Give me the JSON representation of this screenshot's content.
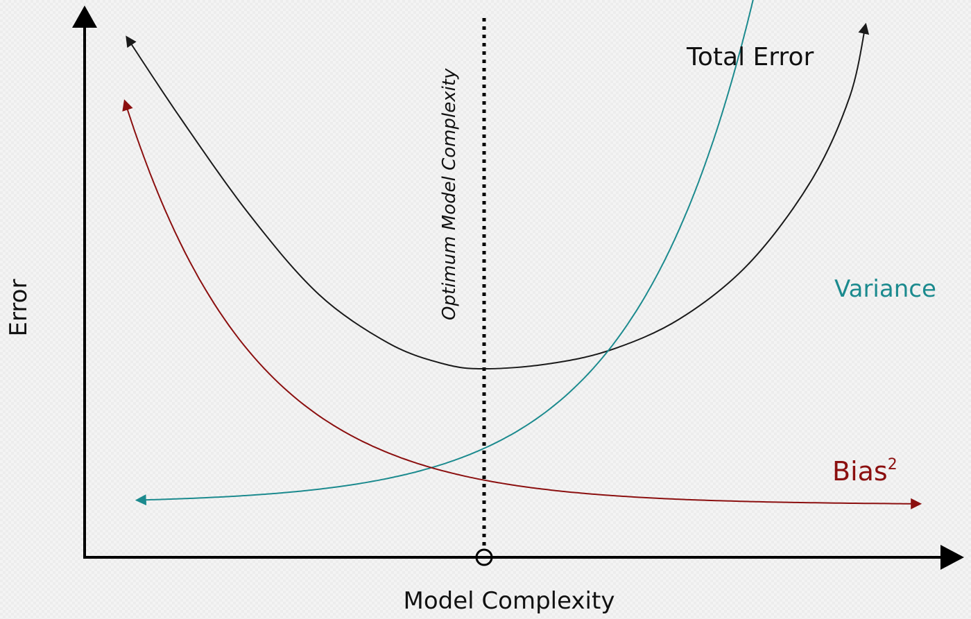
{
  "chart_data": {
    "type": "line",
    "xlabel": "Model Complexity",
    "ylabel": "Error",
    "annotation": "Optimum Model Complexity",
    "grid": false,
    "legend": "inline-labels",
    "series": [
      {
        "name": "Total Error",
        "label": "Total Error",
        "color": "#1a1a1a"
      },
      {
        "name": "Variance",
        "label": "Variance",
        "color": "#1b8a8e"
      },
      {
        "name": "Bias²",
        "label": "Bias",
        "label_sup": "2",
        "color": "#8b0f0f"
      }
    ]
  }
}
